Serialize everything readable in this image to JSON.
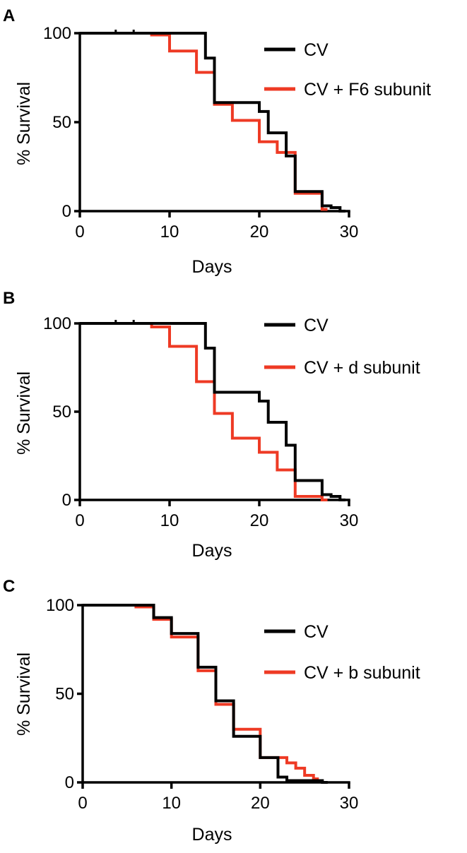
{
  "colors": {
    "cv": "#000000",
    "treatment": "#ee3a24"
  },
  "chart_data": [
    {
      "type": "line",
      "step": true,
      "panel": "A",
      "xlabel": "Days",
      "ylabel": "% Survival",
      "xlim": [
        0,
        30
      ],
      "ylim": [
        0,
        100
      ],
      "xticks": [
        "0",
        "10",
        "20",
        "30"
      ],
      "yticks": [
        "0",
        "50",
        "100"
      ],
      "legend_position": "top-right",
      "series": [
        {
          "name": "CV",
          "color": "#000000",
          "x": [
            0,
            13,
            14,
            15,
            18,
            20,
            21,
            22,
            23,
            24,
            27,
            28,
            29
          ],
          "y": [
            100,
            100,
            86,
            61,
            61,
            56,
            44,
            44,
            31,
            11,
            3,
            2,
            0
          ],
          "censored_x": [
            4,
            6
          ]
        },
        {
          "name": "CV + F6 subunit",
          "color": "#ee3a24",
          "x": [
            0,
            8,
            10,
            13,
            15,
            17,
            20,
            22,
            24,
            27
          ],
          "y": [
            100,
            99,
            90,
            78,
            60,
            51,
            39,
            33,
            10,
            1
          ],
          "censored_x": []
        }
      ]
    },
    {
      "type": "line",
      "step": true,
      "panel": "B",
      "xlabel": "Days",
      "ylabel": "% Survival",
      "xlim": [
        0,
        30
      ],
      "ylim": [
        0,
        100
      ],
      "xticks": [
        "0",
        "10",
        "20",
        "30"
      ],
      "yticks": [
        "0",
        "50",
        "100"
      ],
      "legend_position": "top-right",
      "series": [
        {
          "name": "CV",
          "color": "#000000",
          "x": [
            0,
            13,
            14,
            15,
            18,
            20,
            21,
            22,
            23,
            24,
            27,
            28,
            29
          ],
          "y": [
            100,
            100,
            86,
            61,
            61,
            56,
            44,
            44,
            31,
            11,
            3,
            2,
            0
          ],
          "censored_x": [
            4,
            6
          ]
        },
        {
          "name": "CV + d subunit",
          "color": "#ee3a24",
          "x": [
            0,
            8,
            10,
            13,
            15,
            17,
            20,
            22,
            24,
            27
          ],
          "y": [
            100,
            98,
            87,
            67,
            49,
            35,
            27,
            17,
            2,
            0
          ],
          "censored_x": []
        }
      ]
    },
    {
      "type": "line",
      "step": true,
      "panel": "C",
      "xlabel": "Days",
      "ylabel": "% Survival",
      "xlim": [
        0,
        30
      ],
      "ylim": [
        0,
        100
      ],
      "xticks": [
        "0",
        "10",
        "20",
        "30"
      ],
      "yticks": [
        "0",
        "50",
        "100"
      ],
      "legend_position": "top-right",
      "series": [
        {
          "name": "CV",
          "color": "#000000",
          "x": [
            0,
            7,
            8,
            10,
            13,
            15,
            17,
            20,
            22,
            23,
            27
          ],
          "y": [
            100,
            100,
            93,
            84,
            65,
            46,
            26,
            14,
            3,
            1,
            0
          ],
          "censored_x": []
        },
        {
          "name": "CV + b subunit",
          "color": "#ee3a24",
          "x": [
            0,
            6,
            8,
            10,
            13,
            15,
            17,
            20,
            23,
            24,
            25,
            26
          ],
          "y": [
            100,
            99,
            92,
            82,
            63,
            44,
            30,
            14,
            11,
            8,
            4,
            2
          ],
          "censored_x": []
        }
      ]
    }
  ]
}
